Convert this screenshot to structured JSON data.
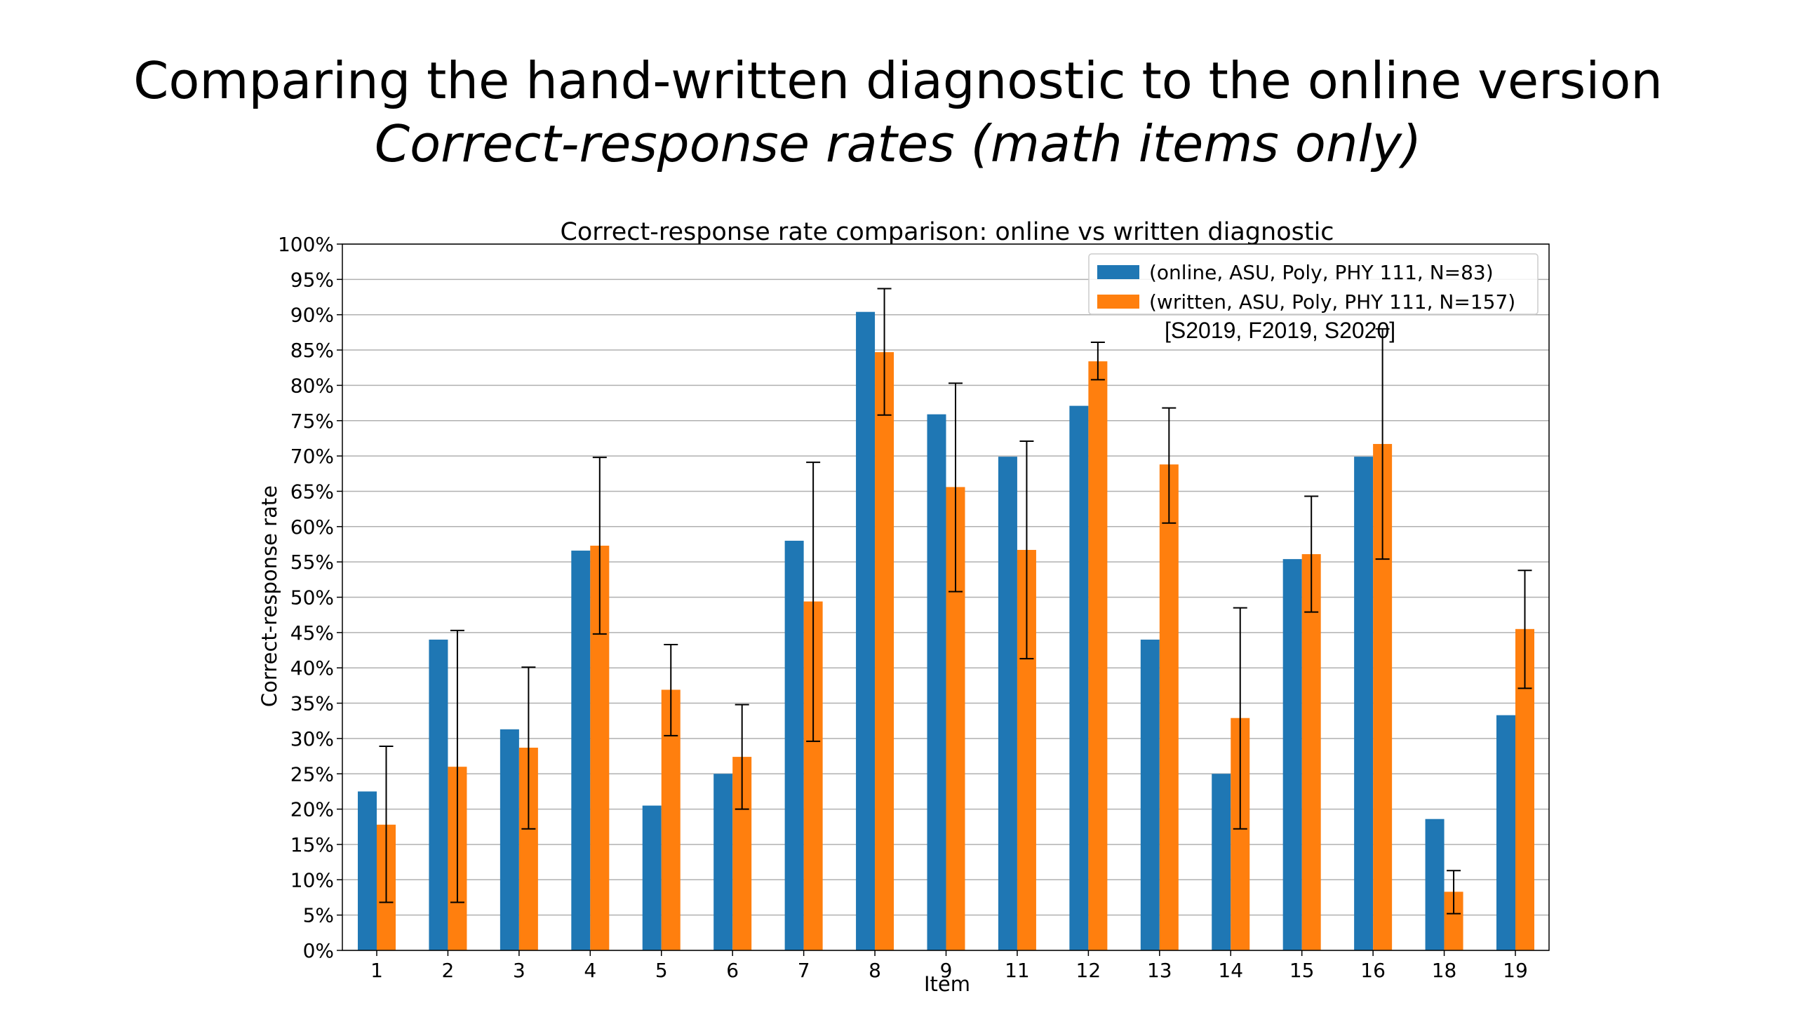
{
  "slide": {
    "title_line1": "Comparing the hand-written diagnostic to the online version",
    "title_line2": "Correct-response rates (math items only)"
  },
  "chart_data": {
    "type": "bar",
    "title": "Correct-response rate comparison: online vs written diagnostic",
    "xlabel": "Item",
    "ylabel": "Correct-response rate",
    "ylim": [
      0,
      100
    ],
    "y_ticks": [
      "0%",
      "5%",
      "10%",
      "15%",
      "20%",
      "25%",
      "30%",
      "35%",
      "40%",
      "45%",
      "50%",
      "55%",
      "60%",
      "65%",
      "70%",
      "75%",
      "80%",
      "85%",
      "90%",
      "95%",
      "100%"
    ],
    "grid": true,
    "legend_position": "top-right",
    "categories": [
      "1",
      "2",
      "3",
      "4",
      "5",
      "6",
      "7",
      "8",
      "9",
      "11",
      "12",
      "13",
      "14",
      "15",
      "16",
      "18",
      "19"
    ],
    "series": [
      {
        "name": "(online, ASU, Poly, PHY 111, N=83)",
        "color": "#1f77b4",
        "values": [
          22.5,
          44,
          31.3,
          56.6,
          20.5,
          25,
          58,
          90.4,
          75.9,
          69.9,
          77.1,
          44,
          25,
          55.4,
          69.9,
          18.6,
          33.3
        ]
      },
      {
        "name": "(written, ASU, Poly, PHY 111, N=157)",
        "color": "#ff7f0e",
        "values": [
          17.8,
          26,
          28.7,
          57.3,
          36.9,
          27.4,
          49.4,
          84.7,
          65.6,
          56.7,
          83.4,
          68.8,
          32.9,
          56.1,
          71.7,
          8.3,
          45.5
        ],
        "error_low": [
          6.8,
          6.8,
          17.2,
          44.8,
          30.4,
          20,
          29.6,
          75.8,
          50.8,
          41.3,
          80.8,
          60.5,
          17.2,
          47.9,
          55.4,
          5.2,
          37.1
        ],
        "error_high": [
          28.9,
          45.3,
          40.1,
          69.8,
          43.3,
          34.8,
          69.1,
          93.7,
          80.3,
          72.1,
          86.1,
          76.8,
          48.5,
          64.3,
          88,
          11.3,
          53.8
        ]
      }
    ],
    "annotation": "[S2019, F2019, S2020]"
  }
}
